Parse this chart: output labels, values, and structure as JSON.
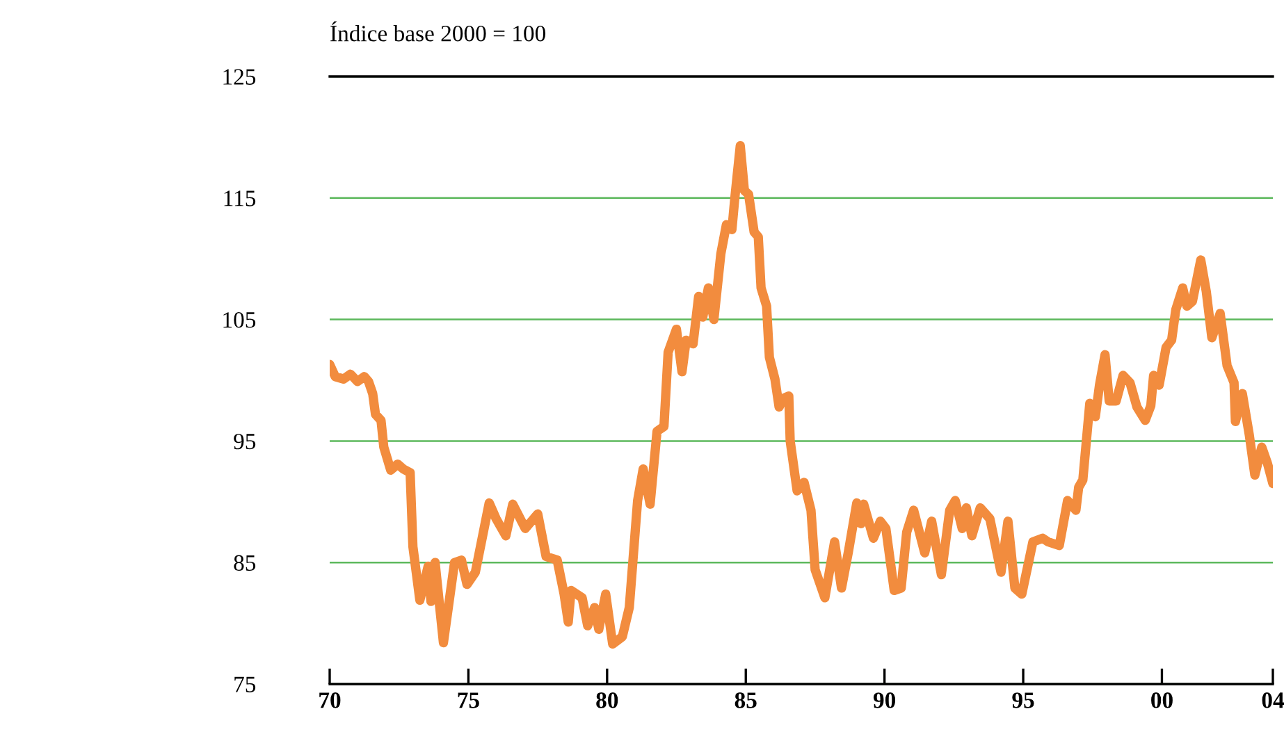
{
  "chart_data": {
    "type": "line",
    "ylabel": "Índice base 2000 = 100",
    "x": [
      1970.0,
      1970.2,
      1970.5,
      1970.75,
      1971.0,
      1971.25,
      1971.4,
      1971.55,
      1971.65,
      1971.85,
      1971.95,
      1972.2,
      1972.45,
      1972.65,
      1972.9,
      1973.0,
      1973.25,
      1973.55,
      1973.65,
      1973.8,
      1974.1,
      1974.5,
      1974.75,
      1974.95,
      1975.25,
      1975.75,
      1976.0,
      1976.35,
      1976.6,
      1977.05,
      1977.5,
      1977.8,
      1978.2,
      1978.45,
      1978.6,
      1978.7,
      1979.1,
      1979.3,
      1979.55,
      1979.7,
      1979.95,
      1980.2,
      1980.55,
      1980.8,
      1981.1,
      1981.3,
      1981.55,
      1981.8,
      1982.05,
      1982.2,
      1982.5,
      1982.7,
      1982.85,
      1983.1,
      1983.3,
      1983.45,
      1983.65,
      1983.85,
      1984.1,
      1984.3,
      1984.5,
      1984.6,
      1984.8,
      1984.95,
      1985.1,
      1985.3,
      1985.45,
      1985.55,
      1985.75,
      1985.85,
      1986.05,
      1986.2,
      1986.35,
      1986.55,
      1986.6,
      1986.85,
      1987.1,
      1987.35,
      1987.5,
      1987.85,
      1988.2,
      1988.45,
      1988.7,
      1989.0,
      1989.15,
      1989.25,
      1989.6,
      1989.85,
      1990.05,
      1990.35,
      1990.6,
      1990.8,
      1991.05,
      1991.45,
      1991.7,
      1992.05,
      1992.35,
      1992.55,
      1992.8,
      1992.95,
      1993.15,
      1993.45,
      1993.8,
      1994.2,
      1994.45,
      1994.7,
      1994.95,
      1995.35,
      1995.7,
      1995.9,
      1996.3,
      1996.6,
      1996.9,
      1997.0,
      1997.15,
      1997.4,
      1997.6,
      1997.75,
      1997.95,
      1998.1,
      1998.35,
      1998.6,
      1998.85,
      1999.1,
      1999.4,
      1999.6,
      1999.7,
      1999.9,
      2000.15,
      2000.35,
      2000.5,
      2000.75,
      2000.9,
      2001.1,
      2001.4,
      2001.6,
      2001.8,
      2002.1,
      2002.35,
      2002.6,
      2002.65,
      2002.9,
      2003.15,
      2003.35,
      2003.6,
      2003.8,
      2004.0
    ],
    "series": [
      {
        "color": "#f28c3e",
        "values": [
          101.3,
          100.3,
          100.1,
          100.5,
          99.9,
          100.3,
          99.9,
          98.9,
          97.2,
          96.7,
          94.5,
          92.6,
          93.1,
          92.7,
          92.4,
          86.3,
          81.9,
          84.7,
          81.8,
          85.0,
          78.4,
          85.0,
          85.2,
          83.2,
          84.2,
          89.9,
          88.6,
          87.2,
          89.8,
          87.8,
          89.0,
          85.5,
          85.2,
          82.4,
          80.1,
          82.7,
          82.1,
          79.8,
          81.3,
          79.5,
          82.4,
          78.3,
          78.9,
          81.3,
          90.1,
          92.7,
          89.8,
          95.8,
          96.2,
          102.3,
          104.2,
          100.7,
          103.3,
          103.0,
          106.9,
          105.2,
          107.6,
          105.0,
          110.4,
          112.8,
          112.4,
          114.9,
          119.3,
          115.6,
          115.3,
          112.2,
          111.8,
          107.6,
          106.1,
          101.9,
          100.1,
          97.8,
          98.5,
          98.7,
          95.0,
          90.9,
          91.6,
          89.3,
          84.4,
          82.1,
          86.7,
          82.9,
          85.9,
          89.9,
          88.2,
          89.8,
          87.0,
          88.4,
          87.8,
          82.7,
          82.9,
          87.5,
          89.3,
          85.8,
          88.4,
          84.0,
          89.3,
          90.1,
          87.8,
          89.5,
          87.2,
          89.5,
          88.6,
          84.2,
          88.4,
          82.9,
          82.4,
          86.7,
          87.0,
          86.7,
          86.4,
          90.1,
          89.3,
          91.2,
          91.8,
          98.1,
          97.0,
          99.6,
          102.1,
          98.3,
          98.3,
          100.4,
          99.8,
          97.8,
          96.7,
          97.9,
          100.4,
          99.6,
          102.7,
          103.3,
          105.8,
          107.6,
          106.1,
          106.5,
          109.9,
          107.3,
          103.5,
          105.5,
          101.2,
          99.8,
          96.6,
          98.9,
          95.5,
          92.2,
          94.5,
          93.2,
          91.5
        ]
      }
    ],
    "xlim": [
      1970,
      2004
    ],
    "xticks": [
      {
        "value": 1970,
        "label": "70"
      },
      {
        "value": 1975,
        "label": "75"
      },
      {
        "value": 1980,
        "label": "80"
      },
      {
        "value": 1985,
        "label": "85"
      },
      {
        "value": 1990,
        "label": "90"
      },
      {
        "value": 1995,
        "label": "95"
      },
      {
        "value": 2000,
        "label": "00"
      },
      {
        "value": 2004,
        "label": "04"
      }
    ],
    "ylim": [
      75,
      125
    ],
    "yticks": [
      75,
      85,
      95,
      105,
      115,
      125
    ],
    "grid": "y",
    "line_style": "solid",
    "marker": "none"
  }
}
